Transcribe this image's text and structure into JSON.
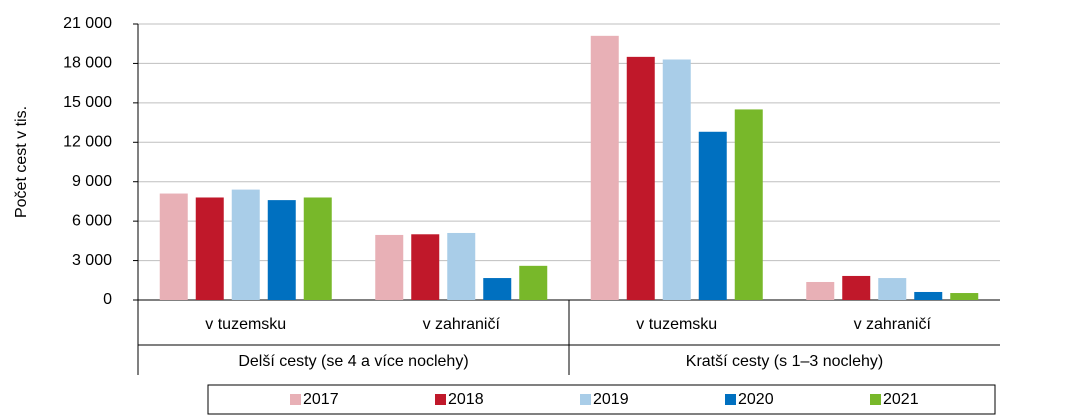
{
  "chart_data": {
    "type": "bar",
    "y_label": "Počet cest v tis.",
    "categories": [
      "v tuzemsku",
      "v zahraničí",
      "v tuzemsku",
      "v zahraničí"
    ],
    "groups": [
      "Delší cesty (se 4 a více noclehy)",
      "Kratší cesty (s 1–3 noclehy)"
    ],
    "series": [
      {
        "name": "2017",
        "color": "#e8b0b6",
        "values": [
          8100,
          4950,
          20100,
          1370
        ]
      },
      {
        "name": "2018",
        "color": "#c0182a",
        "values": [
          7800,
          5000,
          18500,
          1830
        ]
      },
      {
        "name": "2019",
        "color": "#a9cde8",
        "values": [
          8400,
          5100,
          18300,
          1670
        ]
      },
      {
        "name": "2020",
        "color": "#0070c0",
        "values": [
          7600,
          1670,
          12800,
          610
        ]
      },
      {
        "name": "2021",
        "color": "#78b82a",
        "values": [
          7800,
          2600,
          14500,
          530
        ]
      }
    ],
    "ylim": [
      0,
      21000
    ],
    "yticks": [
      0,
      {
        "value": 3000,
        "label": "3 000"
      },
      {
        "value": 6000,
        "label": "6 000"
      },
      {
        "value": 9000,
        "label": "9 000"
      },
      {
        "value": 12000,
        "label": "12 000"
      },
      {
        "value": 15000,
        "label": "15 000"
      },
      {
        "value": 18000,
        "label": "18 000"
      },
      {
        "value": 21000,
        "label": "21 000"
      }
    ],
    "grid": true,
    "legend": "bottom"
  }
}
